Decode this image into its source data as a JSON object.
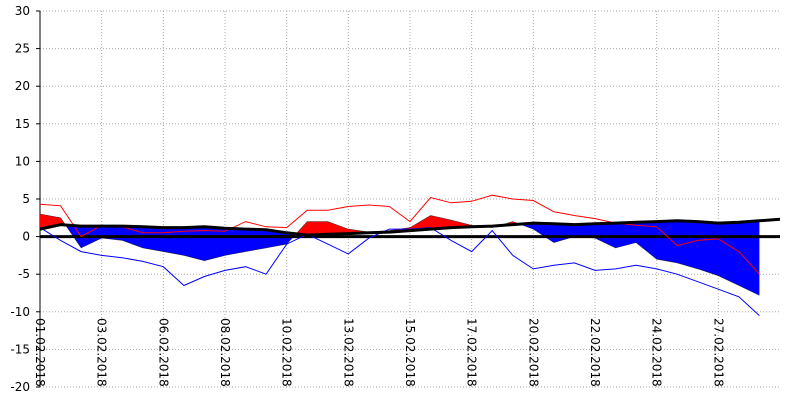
{
  "chart_data": {
    "type": "line",
    "categories": [
      "01.02.2018",
      null,
      null,
      "03.02.2018",
      null,
      null,
      "06.02.2018",
      null,
      null,
      "08.02.2018",
      null,
      null,
      "10.02.2018",
      null,
      null,
      "13.02.2018",
      null,
      null,
      "15.02.2018",
      null,
      null,
      "17.02.2018",
      null,
      null,
      "20.02.2018",
      null,
      null,
      "22.02.2018",
      null,
      null,
      "24.02.2018",
      null,
      null,
      "27.02.2018",
      null,
      null,
      null
    ],
    "series": [
      {
        "type": "band",
        "color": "#000000",
        "above_color": "#ff0000",
        "below_color": "#0000ff",
        "baseline_series": 3,
        "values": [
          3.0,
          2.5,
          -1.5,
          -0.2,
          -0.5,
          -1.5,
          -2.0,
          -2.5,
          -3.2,
          -2.5,
          -2.0,
          -1.5,
          -1.0,
          2.0,
          2.0,
          1.0,
          0.6,
          0.8,
          1.2,
          2.8,
          2.2,
          1.5,
          1.2,
          2.0,
          1.0,
          -0.8,
          0.0,
          -0.2,
          -1.5,
          -0.8,
          -3.0,
          -3.5,
          -4.3,
          -5.2,
          -6.5,
          -7.8,
          null
        ]
      },
      {
        "type": "line",
        "color": "#ff0000",
        "width": 1,
        "values": [
          4.3,
          4.1,
          0.0,
          1.5,
          1.3,
          0.5,
          0.5,
          0.7,
          0.8,
          0.7,
          2.0,
          1.3,
          1.2,
          3.5,
          3.5,
          4.0,
          4.2,
          4.0,
          2.0,
          5.2,
          4.5,
          4.7,
          5.5,
          5.0,
          4.8,
          3.3,
          2.8,
          2.4,
          1.8,
          1.5,
          1.3,
          -1.2,
          -0.5,
          -0.3,
          -2.0,
          -5.0,
          null
        ]
      },
      {
        "type": "line",
        "color": "#0000ff",
        "width": 1,
        "values": [
          1.2,
          -0.5,
          -2.0,
          -2.5,
          -2.8,
          -3.3,
          -4.0,
          -6.5,
          -5.3,
          -4.5,
          -4.0,
          -5.0,
          -1.0,
          0.3,
          -1.0,
          -2.3,
          -0.2,
          1.0,
          1.0,
          1.2,
          -0.5,
          -2.0,
          0.8,
          -2.5,
          -4.3,
          -3.8,
          -3.5,
          -4.5,
          -4.3,
          -3.8,
          -4.3,
          -5.0,
          -6.0,
          -7.0,
          -8.0,
          -10.5,
          null
        ]
      },
      {
        "type": "line",
        "color": "#000000",
        "width": 3,
        "values": [
          1.0,
          1.6,
          1.4,
          1.4,
          1.4,
          1.3,
          1.2,
          1.2,
          1.3,
          1.1,
          1.0,
          0.9,
          0.5,
          0.2,
          0.3,
          0.4,
          0.5,
          0.6,
          0.8,
          1.0,
          1.2,
          1.3,
          1.4,
          1.6,
          1.8,
          1.7,
          1.6,
          1.7,
          1.8,
          1.9,
          2.0,
          2.1,
          2.0,
          1.8,
          1.9,
          2.1,
          2.3
        ]
      }
    ],
    "ylim": [
      -20,
      30
    ],
    "yticks": [
      -20,
      -15,
      -10,
      -5,
      0,
      5,
      10,
      15,
      20,
      25,
      30
    ],
    "grid": true,
    "zero_line_color": "#000000"
  }
}
